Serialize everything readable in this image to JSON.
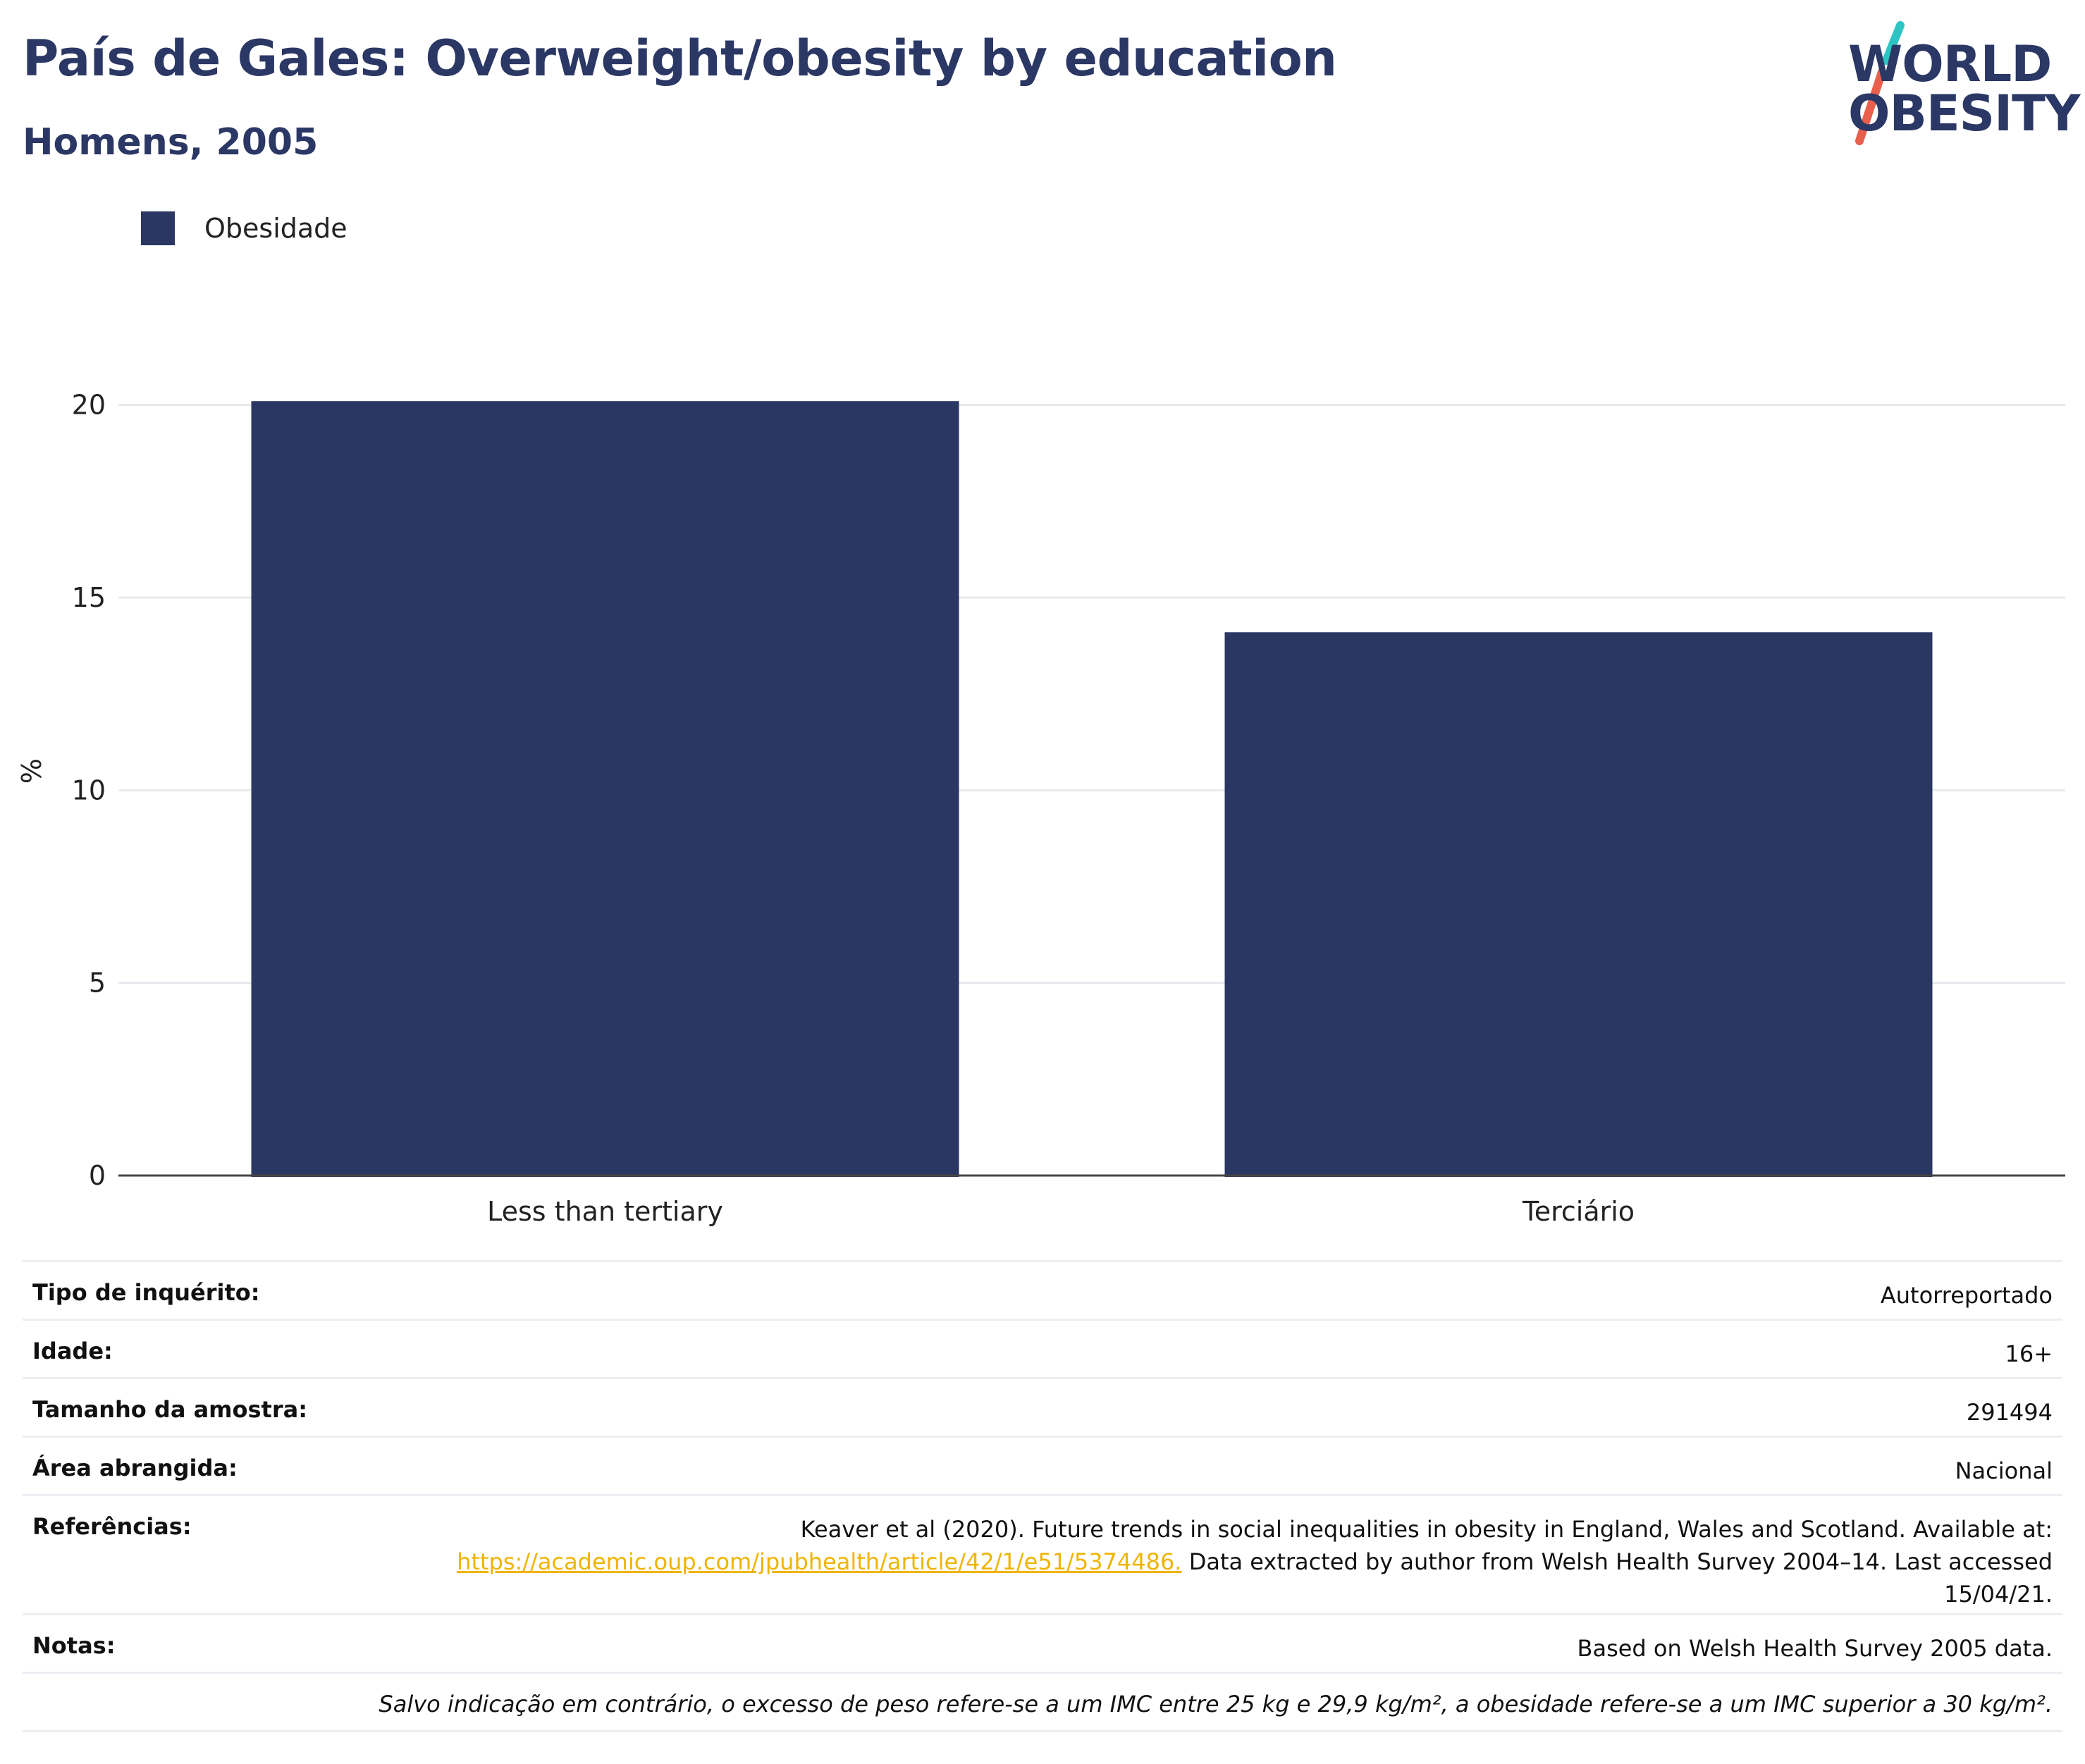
{
  "title": "País de Gales: Overweight/obesity by education",
  "subtitle": "Homens, 2005",
  "logo": {
    "line1": "WORLD",
    "line2": "OBESITY",
    "slash_colors": [
      "#2ec4c4",
      "#e8604c"
    ]
  },
  "legend": {
    "items": [
      {
        "label": "Obesidade",
        "color": "#2a3762"
      }
    ]
  },
  "chart_data": {
    "type": "bar",
    "categories": [
      "Less than tertiary",
      "Terciário"
    ],
    "series": [
      {
        "name": "Obesidade",
        "values": [
          20.1,
          14.1
        ],
        "color": "#2a3762"
      }
    ],
    "ylabel": "%",
    "ylim": [
      0,
      21
    ],
    "yticks": [
      0,
      5,
      10,
      15,
      20
    ],
    "grid": true,
    "legend_position": "top-left"
  },
  "info": {
    "survey_type": {
      "label": "Tipo de inquérito:",
      "value": "Autorreportado"
    },
    "age": {
      "label": "Idade:",
      "value": "16+"
    },
    "sample_size": {
      "label": "Tamanho da amostra:",
      "value": "291494"
    },
    "area": {
      "label": "Área abrangida:",
      "value": "Nacional"
    },
    "references": {
      "label": "Referências:",
      "text_before": "Keaver et al (2020). Future trends in social inequalities in obesity in England, Wales and Scotland. Available at:",
      "link": "https://academic.oup.com/jpubhealth/article/42/1/e51/5374486.",
      "text_after": "Data extracted by author from Welsh Health Survey 2004–14. Last accessed 15/04/21."
    },
    "notes": {
      "label": "Notas:",
      "value": "Based on Welsh Health Survey 2005 data."
    },
    "footnote": "Salvo indicação em contrário, o excesso de peso refere-se a um IMC entre 25 kg e 29,9 kg/m², a obesidade refere-se a um IMC superior a 30 kg/m²."
  }
}
